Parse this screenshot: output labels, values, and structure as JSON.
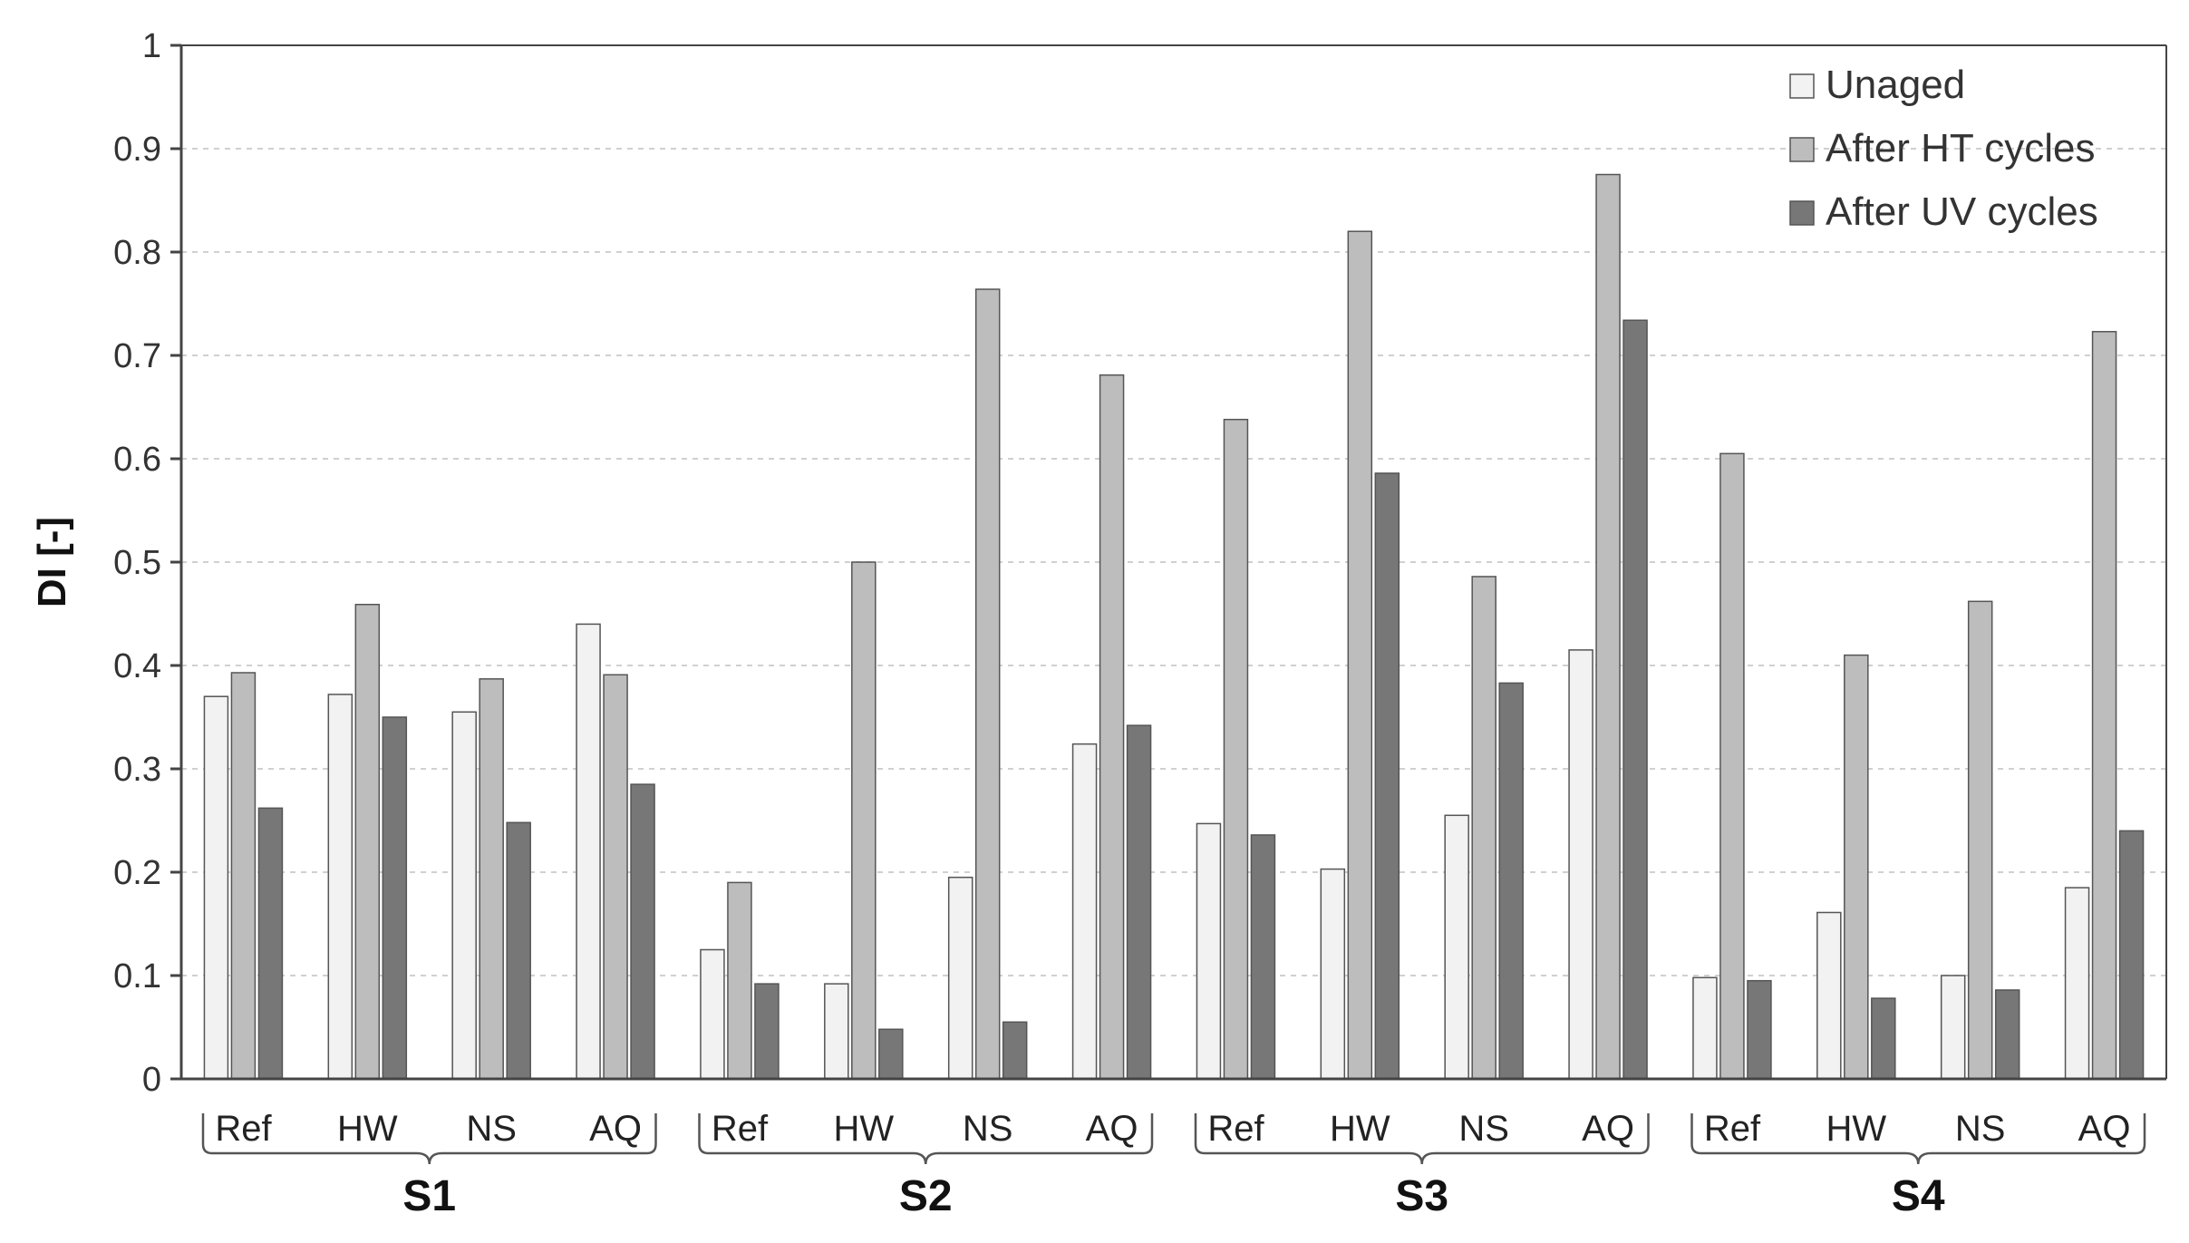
{
  "chart_data": {
    "type": "bar",
    "ylabel": "DI [-]",
    "ylim": [
      0,
      1
    ],
    "yticks": [
      "0",
      "0.1",
      "0.2",
      "0.3",
      "0.4",
      "0.5",
      "0.6",
      "0.7",
      "0.8",
      "0.9",
      "1"
    ],
    "grid": true,
    "legend_position": "top-right",
    "groups": [
      "S1",
      "S2",
      "S3",
      "S4"
    ],
    "categories": [
      "Ref",
      "HW",
      "NS",
      "AQ",
      "Ref",
      "HW",
      "NS",
      "AQ",
      "Ref",
      "HW",
      "NS",
      "AQ",
      "Ref",
      "HW",
      "NS",
      "AQ"
    ],
    "series": [
      {
        "name": "Unaged",
        "color": "#f2f2f2",
        "values": [
          0.37,
          0.372,
          0.355,
          0.44,
          0.125,
          0.092,
          0.195,
          0.324,
          0.247,
          0.203,
          0.255,
          0.415,
          0.098,
          0.161,
          0.1,
          0.185
        ]
      },
      {
        "name": "After HT cycles",
        "color": "#bdbdbd",
        "values": [
          0.393,
          0.459,
          0.387,
          0.391,
          0.19,
          0.5,
          0.764,
          0.681,
          0.638,
          0.82,
          0.486,
          0.875,
          0.605,
          0.41,
          0.462,
          0.723
        ]
      },
      {
        "name": "After UV cycles",
        "color": "#777777",
        "values": [
          0.262,
          0.35,
          0.248,
          0.285,
          0.092,
          0.048,
          0.055,
          0.342,
          0.236,
          0.586,
          0.383,
          0.734,
          0.095,
          0.078,
          0.086,
          0.24
        ]
      }
    ]
  }
}
